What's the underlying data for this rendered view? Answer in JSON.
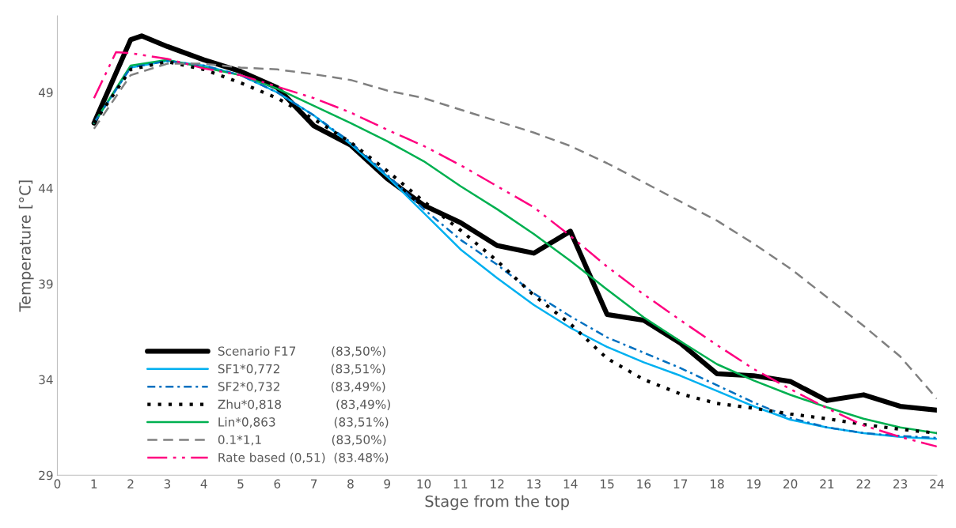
{
  "chart_data": {
    "type": "line",
    "xlabel": "Stage from the top",
    "ylabel": "Temperature [°C]",
    "x": [
      1,
      2,
      3,
      4,
      5,
      6,
      7,
      8,
      9,
      10,
      11,
      12,
      13,
      14,
      15,
      16,
      17,
      18,
      19,
      20,
      21,
      22,
      23,
      24
    ],
    "xlim": [
      0,
      24
    ],
    "xticks": [
      0,
      1,
      2,
      3,
      4,
      5,
      6,
      7,
      8,
      9,
      10,
      11,
      12,
      13,
      14,
      15,
      16,
      17,
      18,
      19,
      20,
      21,
      22,
      23,
      24
    ],
    "ylim": [
      29,
      53
    ],
    "yticks": [
      29,
      34,
      39,
      44,
      49
    ],
    "grid": false,
    "legend": "bottom left",
    "marker": "none",
    "series": [
      {
        "name": "Scenario F17         (83,50%)",
        "color": "#000000",
        "line_style": "solid",
        "x": [
          1,
          2,
          2.3,
          3,
          4,
          5,
          6,
          7,
          8,
          9,
          10,
          11,
          12,
          13,
          14,
          15,
          16,
          17,
          18,
          19,
          20,
          21,
          22,
          23,
          24
        ],
        "values": [
          47.4,
          51.75,
          51.95,
          51.4,
          50.7,
          50.1,
          49.25,
          47.25,
          46.25,
          44.5,
          43.1,
          42.2,
          41.0,
          40.6,
          41.75,
          37.4,
          37.1,
          35.9,
          34.3,
          34.2,
          33.9,
          32.9,
          33.2,
          32.6,
          32.4
        ]
      },
      {
        "name": "SF1*0,772             (83,51%)",
        "color": "#00b0f0",
        "line_style": "solid",
        "values": [
          47.4,
          50.3,
          50.65,
          50.4,
          49.9,
          49.0,
          47.8,
          46.3,
          44.6,
          42.7,
          40.8,
          39.3,
          37.9,
          36.7,
          35.7,
          34.9,
          34.2,
          33.4,
          32.6,
          31.9,
          31.5,
          31.2,
          31.0,
          30.9
        ]
      },
      {
        "name": "SF2*0,732             (83,49%)",
        "color": "#0070c0",
        "line_style": "dashdot",
        "values": [
          47.4,
          50.3,
          50.65,
          50.4,
          49.9,
          49.0,
          47.8,
          46.4,
          44.7,
          42.9,
          41.3,
          40.0,
          38.5,
          37.3,
          36.2,
          35.4,
          34.6,
          33.7,
          32.8,
          32.0,
          31.5,
          31.2,
          31.05,
          30.95
        ]
      },
      {
        "name": "Zhu*0,818              (83,49%)",
        "color": "#000000",
        "line_style": "dotted",
        "values": [
          47.4,
          50.2,
          50.6,
          50.2,
          49.5,
          48.7,
          47.6,
          46.4,
          44.9,
          43.3,
          41.8,
          40.2,
          38.4,
          36.9,
          35.1,
          34.0,
          33.25,
          32.75,
          32.5,
          32.2,
          31.95,
          31.65,
          31.4,
          31.2
        ]
      },
      {
        "name": "Lin*0,863               (83,51%)",
        "color": "#00b050",
        "line_style": "solid",
        "values": [
          47.4,
          50.4,
          50.7,
          50.3,
          49.9,
          49.2,
          48.3,
          47.4,
          46.45,
          45.4,
          44.1,
          42.9,
          41.6,
          40.2,
          38.7,
          37.25,
          36.0,
          34.8,
          33.95,
          33.2,
          32.55,
          31.95,
          31.5,
          31.2
        ]
      },
      {
        "name": "0.1*1,1                  (83,50%)",
        "color": "#808080",
        "line_style": "dashed",
        "values": [
          47.1,
          49.9,
          50.5,
          50.5,
          50.3,
          50.2,
          49.95,
          49.65,
          49.1,
          48.7,
          48.1,
          47.5,
          46.9,
          46.2,
          45.3,
          44.3,
          43.3,
          42.3,
          41.1,
          39.8,
          38.3,
          36.8,
          35.2,
          33.0
        ]
      },
      {
        "name": "Rate based (0,51)  (83.48%)",
        "color": "#ff0080",
        "line_style": "dashdotdot",
        "x": [
          1,
          1.6,
          2,
          3,
          4,
          5,
          6,
          7,
          8,
          9,
          10,
          11,
          12,
          13,
          14,
          15,
          16,
          17,
          18,
          19,
          20,
          21,
          22,
          23,
          24
        ],
        "values": [
          48.7,
          51.1,
          51.05,
          50.75,
          50.25,
          49.9,
          49.3,
          48.7,
          47.95,
          47.05,
          46.2,
          45.2,
          44.1,
          43.0,
          41.5,
          39.9,
          38.45,
          37.1,
          35.8,
          34.55,
          33.5,
          32.5,
          31.6,
          31.0,
          30.5
        ]
      }
    ]
  }
}
